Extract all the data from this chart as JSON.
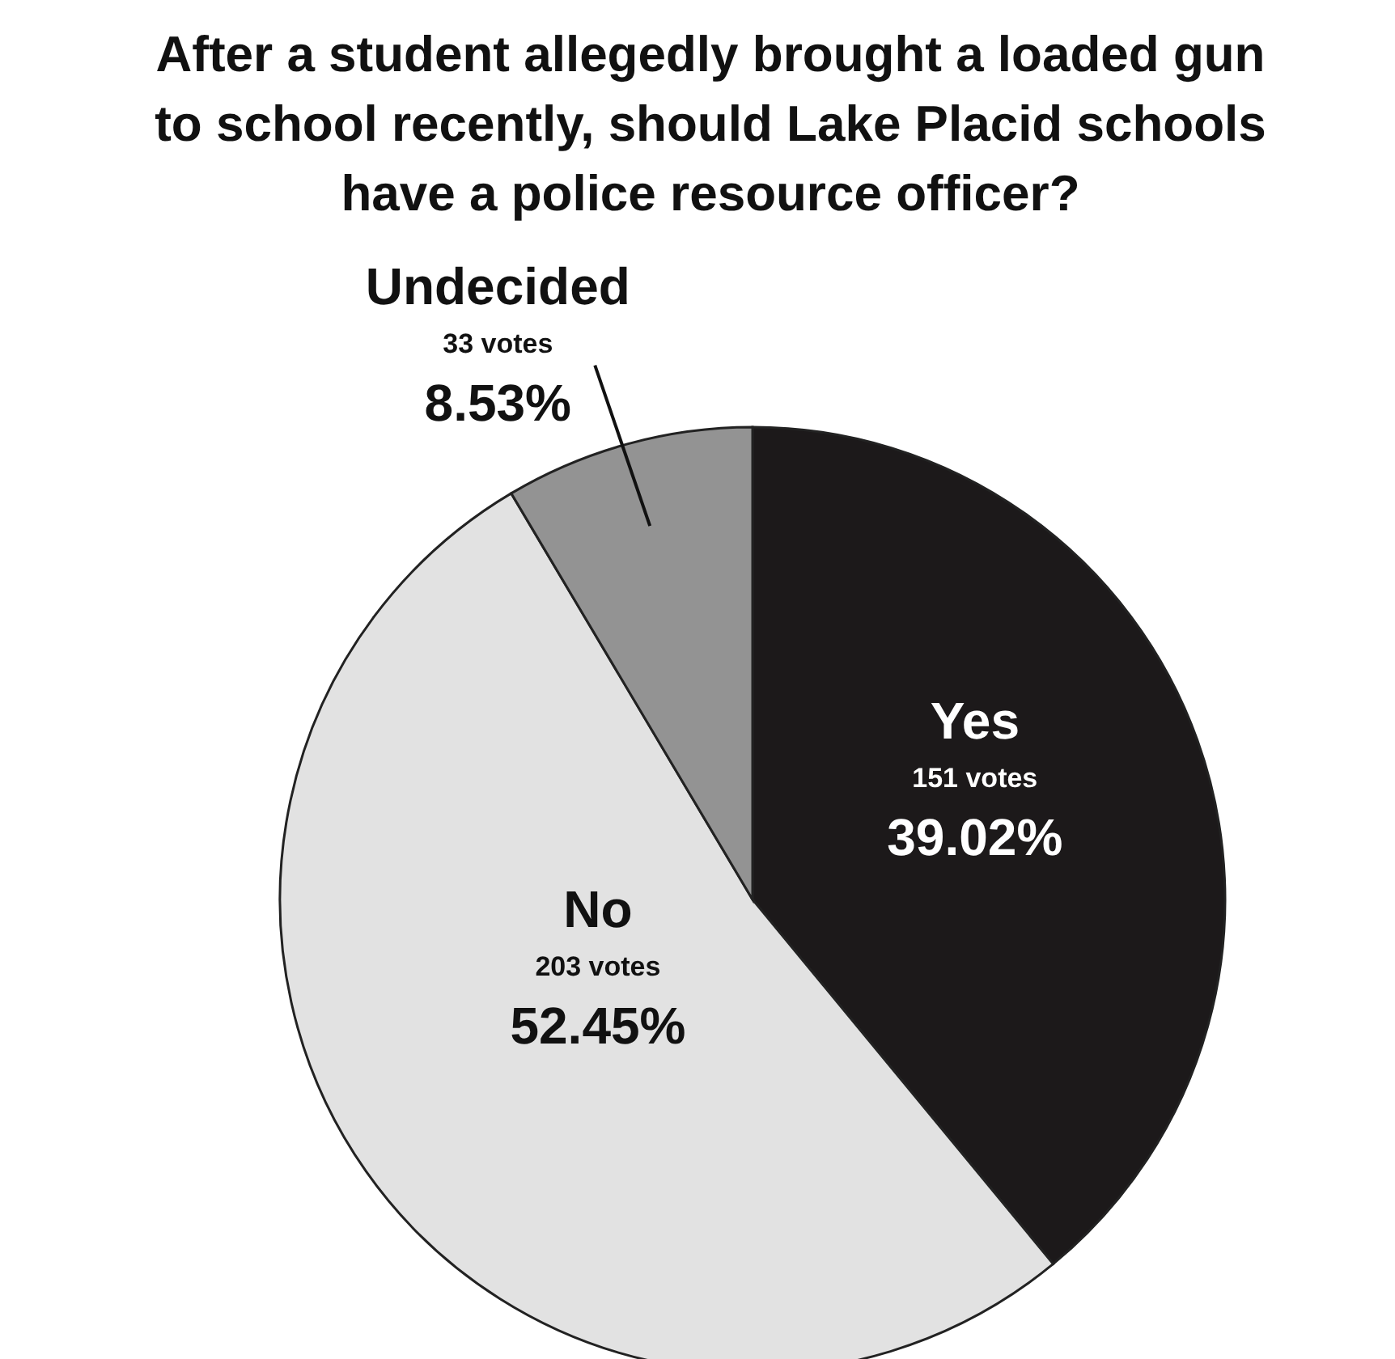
{
  "chart_data": {
    "type": "pie",
    "title": "After a student allegedly brought a loaded gun to school recently, should Lake Placid schools have a police resource officer?",
    "categories": [
      "Yes",
      "No",
      "Undecided"
    ],
    "values": [
      39.02,
      52.45,
      8.53
    ],
    "colors": [
      "#1c191a",
      "#e2e2e2",
      "#939393"
    ],
    "value_labels": [
      "151 votes\n39.02%",
      "203 votes\n52.45%",
      "33 votes\n8.53%"
    ]
  }
}
